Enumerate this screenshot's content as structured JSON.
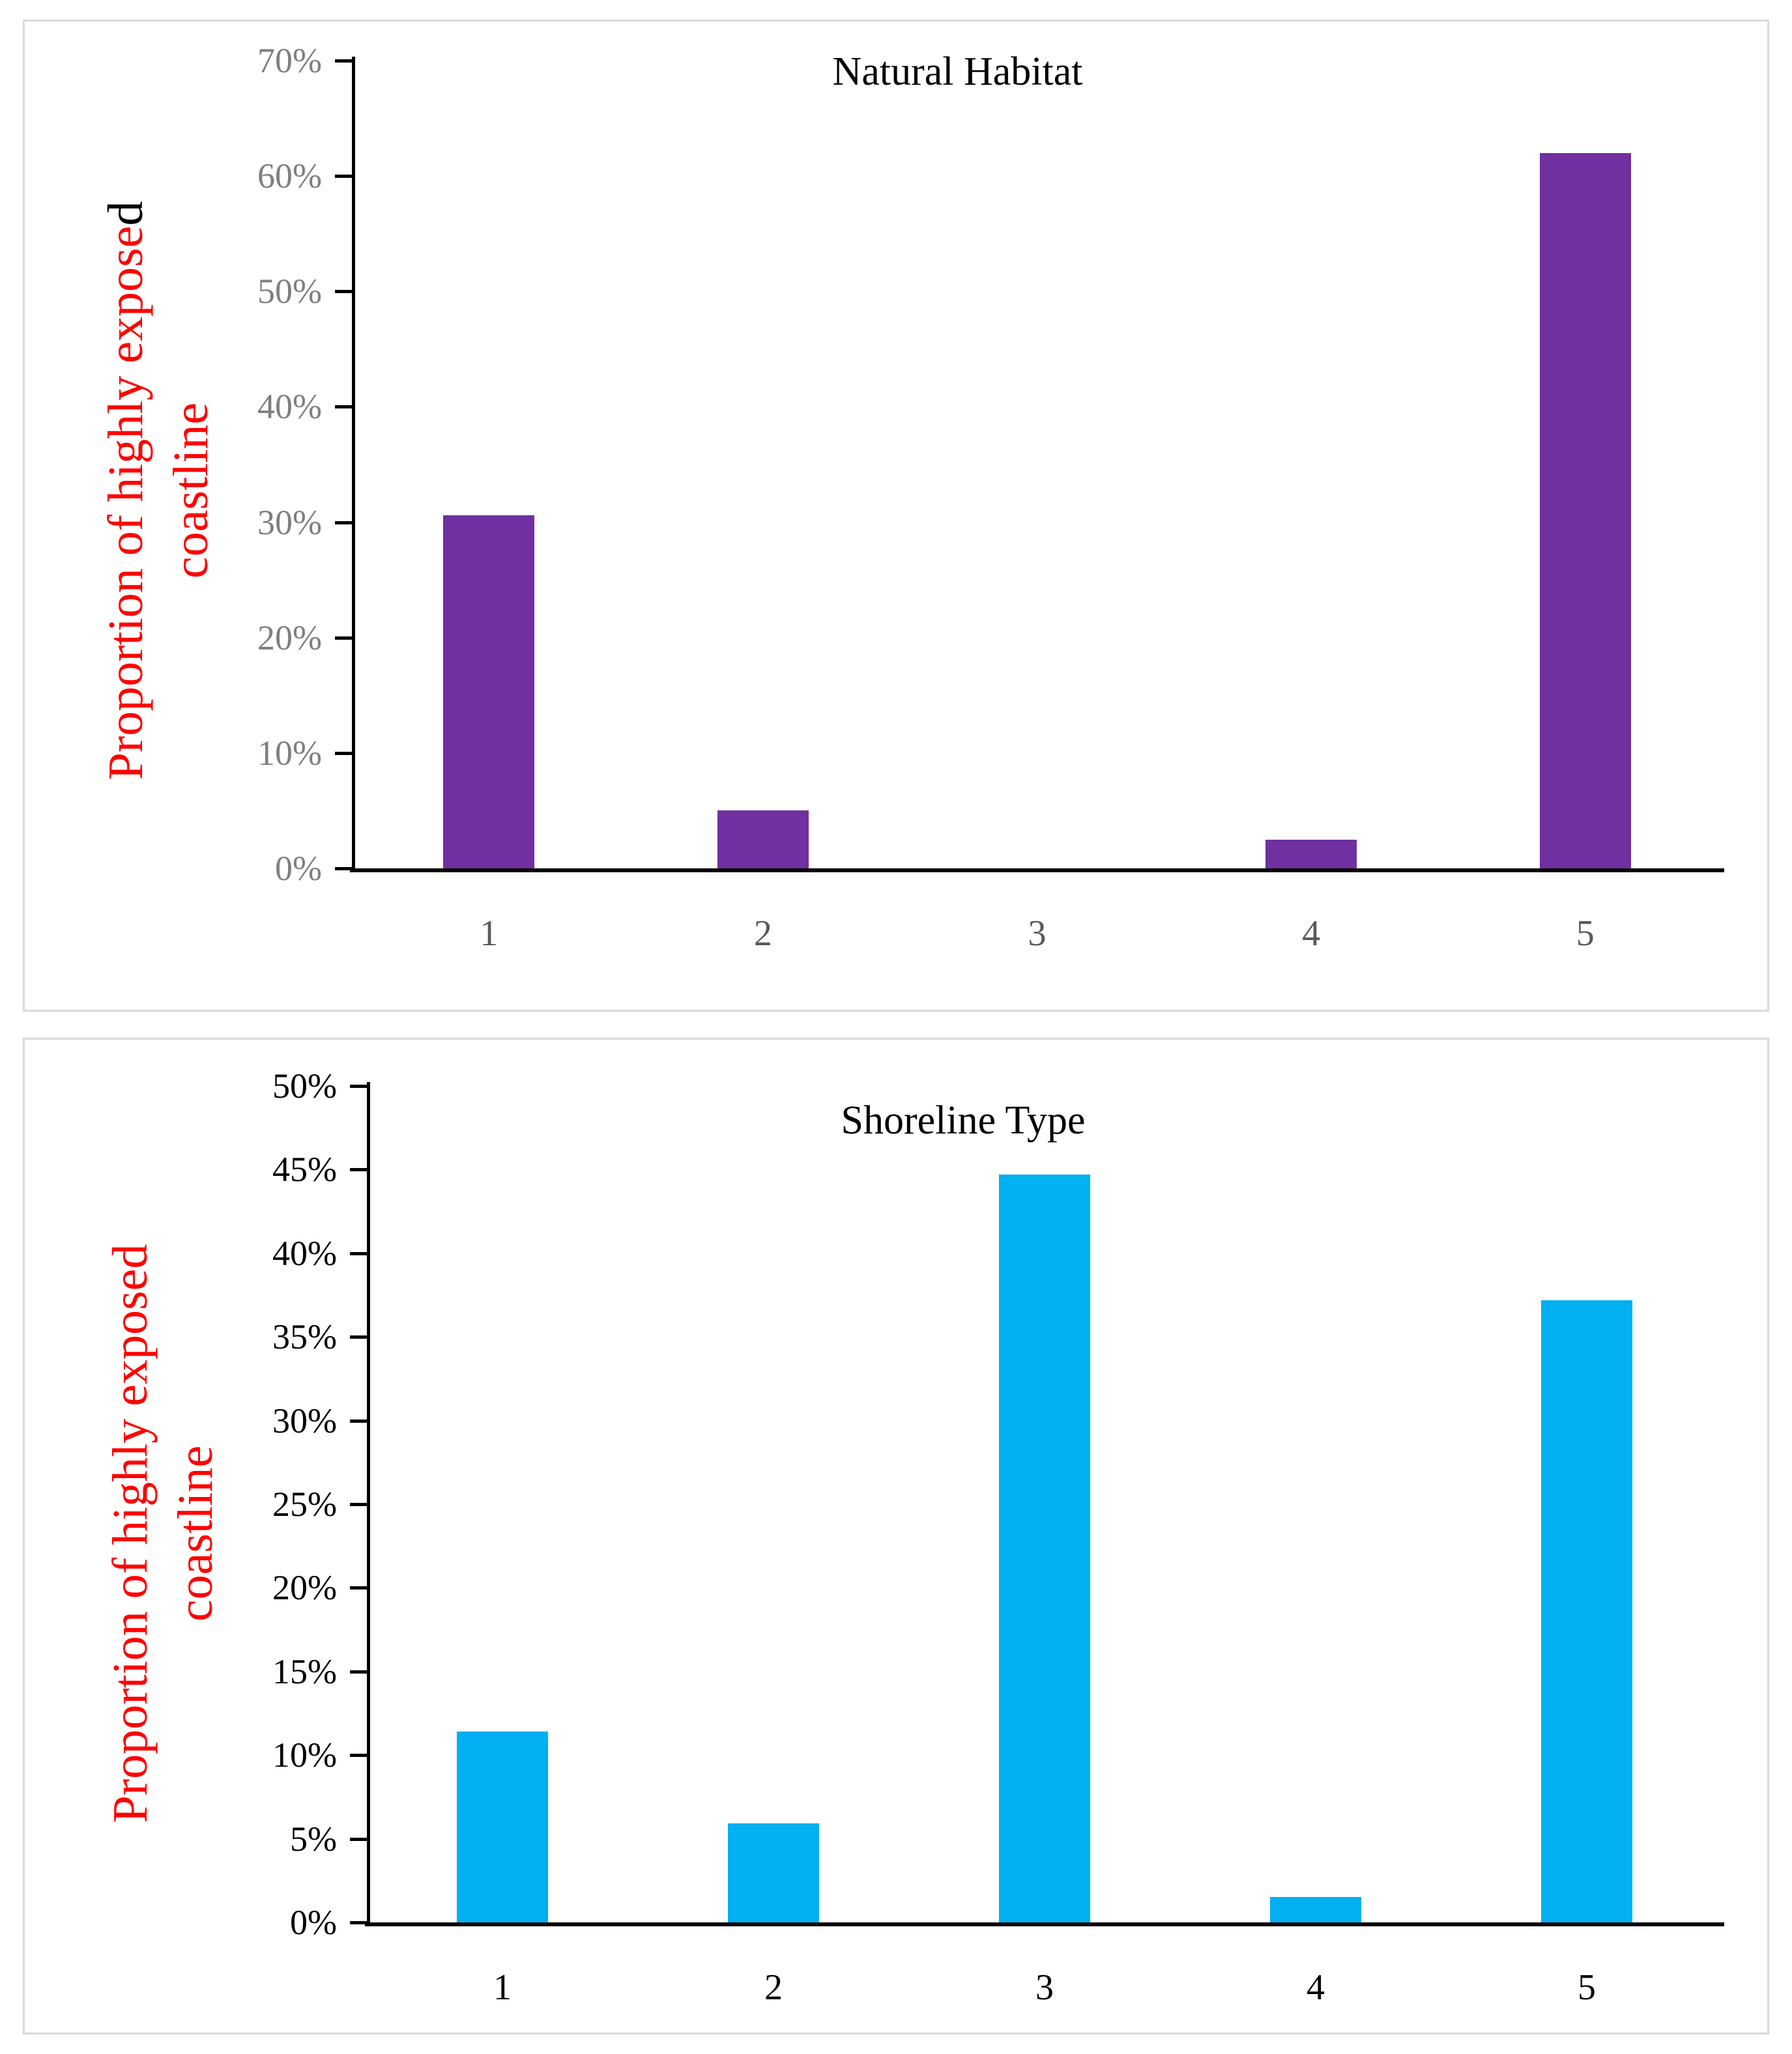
{
  "page": {
    "background_color": "#ffffff",
    "panel_border_color": "#d9d9d9"
  },
  "chart_data": [
    {
      "type": "bar",
      "title": "Natural Habitat",
      "ylabel_line1_red": "Proportion of highly expose",
      "ylabel_line1_black": "d",
      "ylabel_line2": "coastline",
      "ylabel_color": "#ff0000",
      "categories": [
        "1",
        "2",
        "3",
        "4",
        "5"
      ],
      "values": [
        30.6,
        5,
        0,
        2.5,
        62
      ],
      "ylim": [
        0,
        70
      ],
      "y_ticks": [
        {
          "label": "70%",
          "value": 70
        },
        {
          "label": "60%",
          "value": 60
        },
        {
          "label": "50%",
          "value": 50
        },
        {
          "label": "40%",
          "value": 40
        },
        {
          "label": "30%",
          "value": 30
        },
        {
          "label": "20%",
          "value": 20
        },
        {
          "label": "10%",
          "value": 10
        },
        {
          "label": "0%",
          "value": 0
        }
      ],
      "bar_color": "#7030a0",
      "tick_label_color": "#7f7f7f",
      "x_label_color": "#595959",
      "axis_color": "#000000",
      "grid": false,
      "legend": null
    },
    {
      "type": "bar",
      "title": "Shoreline Type",
      "ylabel_line1_red": "Proportion of highly exposed",
      "ylabel_line1_black": "",
      "ylabel_line2": "coastline",
      "ylabel_color": "#ff0000",
      "categories": [
        "1",
        "2",
        "3",
        "4",
        "5"
      ],
      "values": [
        11.4,
        5.9,
        44.7,
        1.5,
        37.2
      ],
      "ylim": [
        0,
        50
      ],
      "y_ticks": [
        {
          "label": "50%",
          "value": 50
        },
        {
          "label": "45%",
          "value": 45
        },
        {
          "label": "40%",
          "value": 40
        },
        {
          "label": "35%",
          "value": 35
        },
        {
          "label": "30%",
          "value": 30
        },
        {
          "label": "25%",
          "value": 25
        },
        {
          "label": "20%",
          "value": 20
        },
        {
          "label": "15%",
          "value": 15
        },
        {
          "label": "10%",
          "value": 10
        },
        {
          "label": "5%",
          "value": 5
        },
        {
          "label": "0%",
          "value": 0
        }
      ],
      "bar_color": "#00b0f0",
      "tick_label_color": "#000000",
      "x_label_color": "#000000",
      "axis_color": "#000000",
      "grid": false,
      "legend": null
    }
  ]
}
